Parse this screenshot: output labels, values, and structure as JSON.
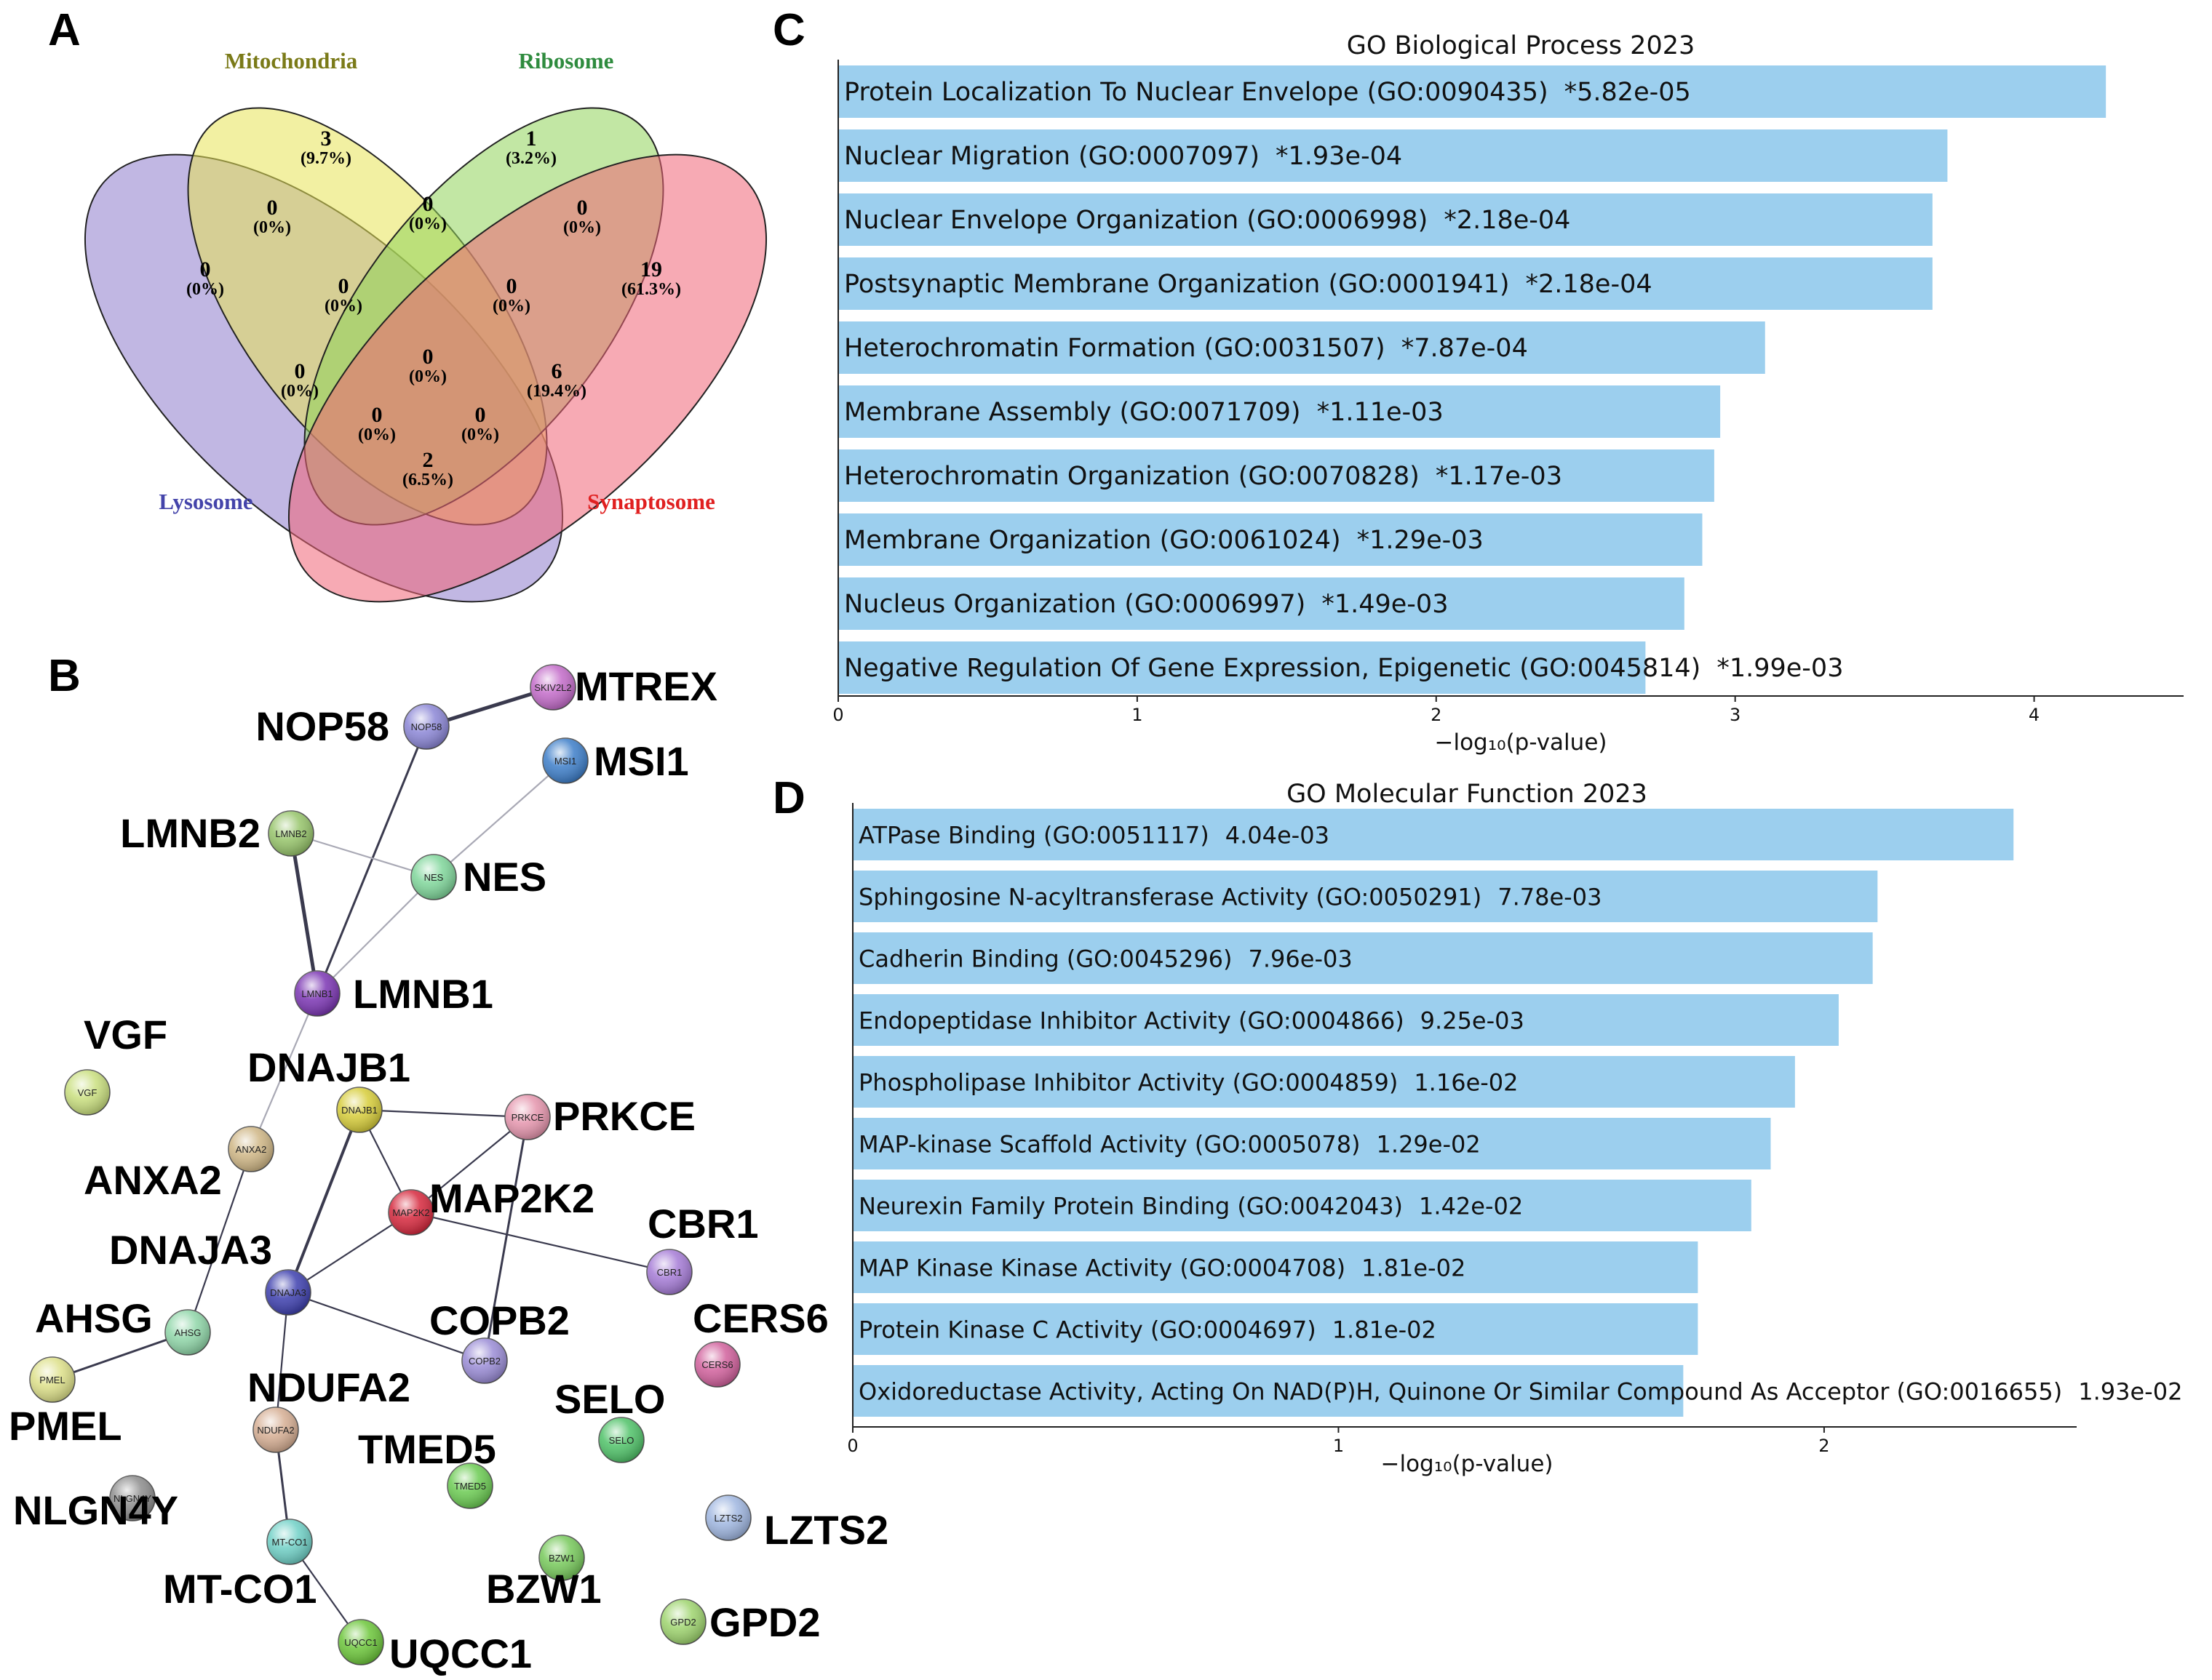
{
  "panels": {
    "A": "A",
    "B": "B",
    "C": "C",
    "D": "D"
  },
  "venn": {
    "sets": [
      {
        "name": "Mitochondria",
        "color": "#e8e455",
        "label_color": "#7a7a18"
      },
      {
        "name": "Ribosome",
        "color": "#8fd45a",
        "label_color": "#2e8b3e"
      },
      {
        "name": "Lysosome",
        "color": "#8e7ccc",
        "label_color": "#4444aa"
      },
      {
        "name": "Synaptosome",
        "color": "#f06477",
        "label_color": "#e02020"
      }
    ],
    "regions": [
      {
        "count": "3",
        "pct": "(9.7%)"
      },
      {
        "count": "1",
        "pct": "(3.2%)"
      },
      {
        "count": "0",
        "pct": "(0%)"
      },
      {
        "count": "0",
        "pct": "(0%)"
      },
      {
        "count": "0",
        "pct": "(0%)"
      },
      {
        "count": "0",
        "pct": "(0%)"
      },
      {
        "count": "19",
        "pct": "(61.3%)"
      },
      {
        "count": "0",
        "pct": "(0%)"
      },
      {
        "count": "0",
        "pct": "(0%)"
      },
      {
        "count": "0",
        "pct": "(0%)"
      },
      {
        "count": "0",
        "pct": "(0%)"
      },
      {
        "count": "6",
        "pct": "(19.4%)"
      },
      {
        "count": "0",
        "pct": "(0%)"
      },
      {
        "count": "0",
        "pct": "(0%)"
      },
      {
        "count": "2",
        "pct": "(6.5%)"
      }
    ]
  },
  "network": {
    "nodes": [
      {
        "id": "MTREX",
        "label": "MTREX",
        "inner": "SKIV2L2",
        "color": "#c36bc9"
      },
      {
        "id": "NOP58",
        "label": "NOP58",
        "inner": "NOP58",
        "color": "#8b86d6"
      },
      {
        "id": "MSI1",
        "label": "MSI1",
        "inner": "MSI1",
        "color": "#3d7ec9"
      },
      {
        "id": "LMNB2",
        "label": "LMNB2",
        "inner": "LMNB2",
        "color": "#96c46a"
      },
      {
        "id": "NES",
        "label": "NES",
        "inner": "NES",
        "color": "#7fd69a"
      },
      {
        "id": "LMNB1",
        "label": "LMNB1",
        "inner": "LMNB1",
        "color": "#7b35b3"
      },
      {
        "id": "VGF",
        "label": "VGF",
        "inner": "VGF",
        "color": "#c9df7e"
      },
      {
        "id": "DNAJB1",
        "label": "DNAJB1",
        "inner": "DNAJB1",
        "color": "#d7cd3a"
      },
      {
        "id": "PRKCE",
        "label": "PRKCE",
        "inner": "PRKCE",
        "color": "#e595ad"
      },
      {
        "id": "ANXA2",
        "label": "ANXA2",
        "inner": "ANXA2",
        "color": "#cfb685"
      },
      {
        "id": "MAP2K2",
        "label": "MAP2K2",
        "inner": "MAP2K2",
        "color": "#d6283d"
      },
      {
        "id": "CBR1",
        "label": "CBR1",
        "inner": "CBR1",
        "color": "#a57bd6"
      },
      {
        "id": "DNAJA3",
        "label": "DNAJA3",
        "inner": "DNAJA3",
        "color": "#3d3fae"
      },
      {
        "id": "AHSG",
        "label": "AHSG",
        "inner": "AHSG",
        "color": "#8fd6a8"
      },
      {
        "id": "COPB2",
        "label": "COPB2",
        "inner": "COPB2",
        "color": "#9a8cd6"
      },
      {
        "id": "CERS6",
        "label": "CERS6",
        "inner": "CERS6",
        "color": "#d1609c"
      },
      {
        "id": "PMEL",
        "label": "PMEL",
        "inner": "PMEL",
        "color": "#dde089"
      },
      {
        "id": "NDUFA2",
        "label": "NDUFA2",
        "inner": "NDUFA2",
        "color": "#d6ae93"
      },
      {
        "id": "SELO",
        "label": "SELO",
        "inner": "SELO",
        "color": "#4fc268"
      },
      {
        "id": "TMED5",
        "label": "TMED5",
        "inner": "TMED5",
        "color": "#6bcb52"
      },
      {
        "id": "NLGN4Y",
        "label": "NLGN4Y",
        "inner": "NLGN4Y",
        "color": "#8d8d8d"
      },
      {
        "id": "LZTS2",
        "label": "LZTS2",
        "inner": "LZTS2",
        "color": "#9fb6e0"
      },
      {
        "id": "MT-CO1",
        "label": "MT-CO1",
        "inner": "MT-CO1",
        "color": "#6fd0c6"
      },
      {
        "id": "BZW1",
        "label": "BZW1",
        "inner": "BZW1",
        "color": "#77c95b"
      },
      {
        "id": "GPD2",
        "label": "GPD2",
        "inner": "GPD2",
        "color": "#9ed46e"
      },
      {
        "id": "UQCC1",
        "label": "UQCC1",
        "inner": "UQCC1",
        "color": "#6cc63a"
      }
    ],
    "edges": [
      [
        "NOP58",
        "MTREX"
      ],
      [
        "NOP58",
        "LMNB1"
      ],
      [
        "MSI1",
        "NES"
      ],
      [
        "LMNB2",
        "NES"
      ],
      [
        "LMNB2",
        "LMNB1"
      ],
      [
        "NES",
        "LMNB1"
      ],
      [
        "LMNB1",
        "ANXA2"
      ],
      [
        "DNAJB1",
        "PRKCE"
      ],
      [
        "DNAJB1",
        "MAP2K2"
      ],
      [
        "DNAJB1",
        "DNAJA3"
      ],
      [
        "PRKCE",
        "MAP2K2"
      ],
      [
        "PRKCE",
        "COPB2"
      ],
      [
        "MAP2K2",
        "CBR1"
      ],
      [
        "MAP2K2",
        "DNAJA3"
      ],
      [
        "DNAJA3",
        "COPB2"
      ],
      [
        "DNAJA3",
        "NDUFA2"
      ],
      [
        "ANXA2",
        "AHSG"
      ],
      [
        "AHSG",
        "PMEL"
      ],
      [
        "NDUFA2",
        "MT-CO1"
      ],
      [
        "MT-CO1",
        "UQCC1"
      ]
    ]
  },
  "chart_data": [
    {
      "type": "bar",
      "orientation": "horizontal",
      "title": "GO Biological Process 2023",
      "xlabel": "−log₁₀(p-value)",
      "ylabel": "",
      "xlim": [
        0,
        4.5
      ],
      "xticks": [
        "0",
        "1",
        "2",
        "3",
        "4"
      ],
      "color": "#9ccfee",
      "categories": [
        "Protein Localization To Nuclear Envelope (GO:0090435)",
        "Nuclear Migration (GO:0007097)",
        "Nuclear Envelope Organization (GO:0006998)",
        "Postsynaptic Membrane Organization (GO:0001941)",
        "Heterochromatin Formation (GO:0031507)",
        "Membrane Assembly (GO:0071709)",
        "Heterochromatin Organization (GO:0070828)",
        "Membrane Organization (GO:0061024)",
        "Nucleus Organization (GO:0006997)",
        "Negative Regulation Of Gene Expression, Epigenetic (GO:0045814)"
      ],
      "pvalues": [
        "*5.82e-05",
        "*1.93e-04",
        "*2.18e-04",
        "*2.18e-04",
        "*7.87e-04",
        "*1.11e-03",
        "*1.17e-03",
        "*1.29e-03",
        "*1.49e-03",
        "*1.99e-03"
      ],
      "values": [
        4.24,
        3.71,
        3.66,
        3.66,
        3.1,
        2.95,
        2.93,
        2.89,
        2.83,
        2.7
      ]
    },
    {
      "type": "bar",
      "orientation": "horizontal",
      "title": "GO Molecular Function 2023",
      "xlabel": "−log₁₀(p-value)",
      "ylabel": "",
      "xlim": [
        0,
        2.52
      ],
      "xticks": [
        "0",
        "1",
        "2"
      ],
      "color": "#9ccfee",
      "categories": [
        "ATPase Binding (GO:0051117)",
        "Sphingosine N-acyltransferase Activity (GO:0050291)",
        "Cadherin Binding (GO:0045296)",
        "Endopeptidase Inhibitor Activity (GO:0004866)",
        "Phospholipase Inhibitor Activity (GO:0004859)",
        "MAP-kinase Scaffold Activity (GO:0005078)",
        "Neurexin Family Protein Binding (GO:0042043)",
        "MAP Kinase Kinase Activity (GO:0004708)",
        "Protein Kinase C Activity (GO:0004697)",
        "Oxidoreductase Activity, Acting On NAD(P)H, Quinone Or Similar Compound As Acceptor (GO:0016655)"
      ],
      "pvalues": [
        "4.04e-03",
        "7.78e-03",
        "7.96e-03",
        "9.25e-03",
        "1.16e-02",
        "1.29e-02",
        "1.42e-02",
        "1.81e-02",
        "1.81e-02",
        "1.93e-02"
      ],
      "values": [
        2.39,
        2.11,
        2.1,
        2.03,
        1.94,
        1.89,
        1.85,
        1.74,
        1.74,
        1.71
      ]
    }
  ]
}
